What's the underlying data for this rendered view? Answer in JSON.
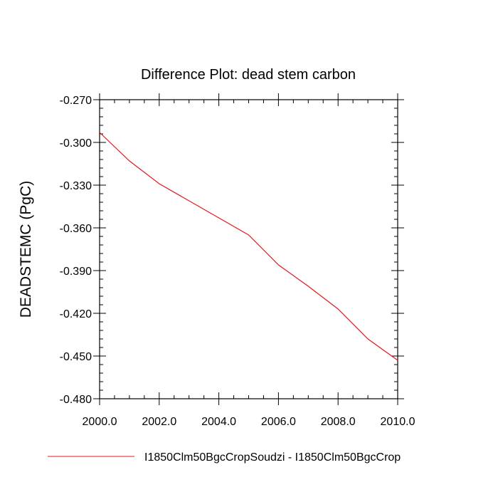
{
  "chart_data": {
    "type": "line",
    "title": "Difference Plot: dead stem carbon",
    "xlabel": "",
    "ylabel": "DEADSTEMC  (PgC)",
    "xlim": [
      2000.0,
      2010.0
    ],
    "ylim": [
      -0.48,
      -0.27
    ],
    "x_ticks": [
      2000.0,
      2002.0,
      2004.0,
      2006.0,
      2008.0,
      2010.0
    ],
    "x_tick_labels": [
      "2000.0",
      "2002.0",
      "2004.0",
      "2006.0",
      "2008.0",
      "2010.0"
    ],
    "y_ticks": [
      -0.27,
      -0.3,
      -0.33,
      -0.36,
      -0.39,
      -0.42,
      -0.45,
      -0.48
    ],
    "y_tick_labels": [
      "-0.270",
      "-0.300",
      "-0.330",
      "-0.360",
      "-0.390",
      "-0.420",
      "-0.450",
      "-0.480"
    ],
    "grid": false,
    "legend_position": "bottom",
    "series": [
      {
        "name": "I1850Clm50BgcCropSoudzi - I1850Clm50BgcCrop",
        "color": "#e8161b",
        "x": [
          2000,
          2001,
          2002,
          2003,
          2004,
          2005,
          2006,
          2007,
          2008,
          2009,
          2010
        ],
        "y": [
          -0.293,
          -0.313,
          -0.329,
          -0.341,
          -0.353,
          -0.365,
          -0.386,
          -0.401,
          -0.417,
          -0.438,
          -0.453
        ]
      }
    ]
  }
}
